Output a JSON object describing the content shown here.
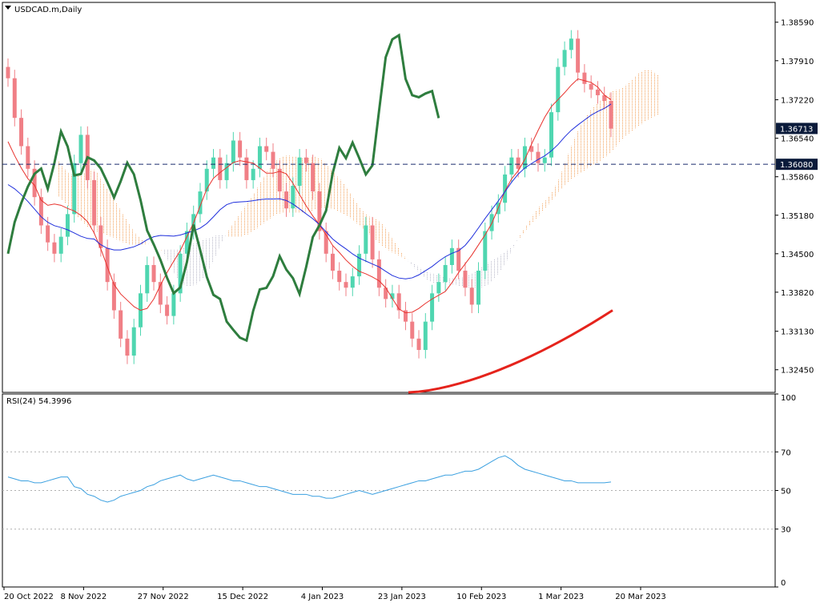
{
  "window": {
    "title": "USDCAD.m,Daily"
  },
  "colors": {
    "background": "#ffffff",
    "frame": "#000000",
    "bull_candle": "#4fd6b0",
    "bear_candle": "#f07f86",
    "tenkan": "#e8322d",
    "kijun": "#1f2fdc",
    "chikou": "#2e7d3e",
    "sma": "#e5231c",
    "kumo_bull": "#f2a15a",
    "kumo_bear": "#b8b8c8",
    "rsi_line": "#3ba0e0",
    "current_price_box": "#0a1a3a"
  },
  "main_pane": {
    "price_ticks": [
      "1.38590",
      "1.37910",
      "1.37220",
      "1.36540",
      "1.35860",
      "1.35180",
      "1.34500",
      "1.33820",
      "1.33130",
      "1.32450"
    ],
    "current_price": "1.36713",
    "horizontal_line_price": "1.36080"
  },
  "rsi_pane": {
    "label": "RSI(24) 54.3996",
    "ticks": [
      "100",
      "70",
      "50",
      "30",
      "0"
    ]
  },
  "x_axis": {
    "labels": [
      "20 Oct 2022",
      "8 Nov 2022",
      "27 Nov 2022",
      "15 Dec 2022",
      "4 Jan 2023",
      "23 Jan 2023",
      "10 Feb 2023",
      "1 Mar 2023",
      "20 Mar 2023"
    ]
  },
  "chart_data": {
    "type": "line",
    "x": [
      "2022-10-20",
      "2022-11-08",
      "2022-11-27",
      "2022-12-15",
      "2023-01-04",
      "2023-01-23",
      "2023-02-10",
      "2023-03-01",
      "2023-03-20"
    ],
    "y_range": [
      1.3205,
      1.3894
    ],
    "rsi_range": [
      0,
      100
    ],
    "rsi_levels": [
      70,
      50,
      30
    ],
    "closes": [
      1.376,
      1.369,
      1.364,
      1.36,
      1.355,
      1.35,
      1.347,
      1.345,
      1.348,
      1.352,
      1.361,
      1.366,
      1.358,
      1.35,
      1.346,
      1.34,
      1.335,
      1.33,
      1.327,
      1.332,
      1.338,
      1.343,
      1.34,
      1.336,
      1.334,
      1.338,
      1.345,
      1.349,
      1.352,
      1.356,
      1.36,
      1.362,
      1.358,
      1.361,
      1.365,
      1.362,
      1.358,
      1.36,
      1.364,
      1.363,
      1.36,
      1.356,
      1.353,
      1.357,
      1.362,
      1.361,
      1.356,
      1.349,
      1.345,
      1.342,
      1.34,
      1.339,
      1.341,
      1.345,
      1.35,
      1.344,
      1.339,
      1.337,
      1.338,
      1.335,
      1.333,
      1.33,
      1.328,
      1.333,
      1.338,
      1.34,
      1.343,
      1.346,
      1.342,
      1.339,
      1.336,
      1.342,
      1.349,
      1.352,
      1.354,
      1.359,
      1.362,
      1.36,
      1.364,
      1.363,
      1.361,
      1.362,
      1.37,
      1.378,
      1.381,
      1.383,
      1.377,
      1.375,
      1.374,
      1.373,
      1.372,
      1.3671
    ],
    "rsi": [
      57,
      56,
      55,
      55,
      54,
      54,
      55,
      56,
      57,
      57,
      52,
      51,
      48,
      47,
      45,
      44,
      45,
      47,
      48,
      49,
      50,
      52,
      53,
      55,
      56,
      57,
      58,
      56,
      55,
      56,
      57,
      58,
      57,
      56,
      55,
      55,
      54,
      53,
      52,
      52,
      51,
      50,
      49,
      48,
      48,
      48,
      47,
      47,
      46,
      46,
      47,
      48,
      49,
      50,
      49,
      48,
      49,
      50,
      51,
      52,
      53,
      54,
      55,
      55,
      56,
      57,
      58,
      58,
      59,
      60,
      60,
      61,
      63,
      65,
      67,
      68,
      66,
      63,
      61,
      60,
      59,
      58,
      57,
      56,
      55,
      55,
      54,
      54,
      54,
      54,
      54,
      54.4
    ]
  }
}
